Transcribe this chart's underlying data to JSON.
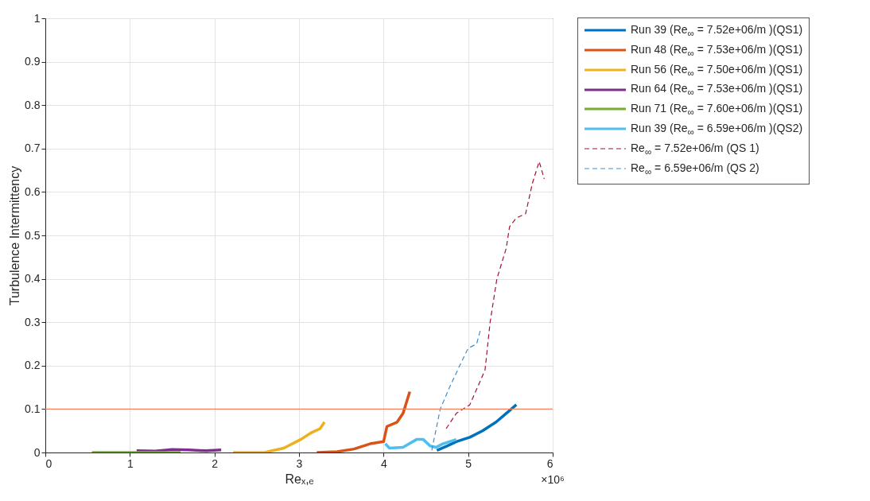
{
  "chart_data": {
    "type": "line",
    "xlabel": "Reₓ,ₑ",
    "ylabel": "Turbulence Intermittency",
    "annotations": [
      "×10⁶"
    ],
    "xlim": [
      0,
      6
    ],
    "ylim": [
      0,
      1
    ],
    "xticks": [
      0,
      1,
      2,
      3,
      4,
      5,
      6
    ],
    "yticks": [
      0,
      0.1,
      0.2,
      0.3,
      0.4,
      0.5,
      0.6,
      0.7,
      0.8,
      0.9,
      1
    ],
    "grid": true,
    "legend": "right",
    "line_style": "solid",
    "marker": "none",
    "ref_lines": [
      {
        "axis": "y",
        "value": 0.1,
        "color": "#f4845f"
      }
    ],
    "series": [
      {
        "name": "Run 39 (Re$_{∞}$ = 7.52e+06/m )(QS1)",
        "color": "#0072bd",
        "x": [
          4.63,
          4.75,
          4.86,
          5.02,
          5.17,
          5.33,
          5.45,
          5.57
        ],
        "values": [
          0.005,
          0.015,
          0.025,
          0.035,
          0.05,
          0.07,
          0.09,
          0.11
        ]
      },
      {
        "name": "Run 48 (Re$_{∞}$ = 7.53e+06/m )(QS1)",
        "color": "#d95319",
        "x": [
          3.21,
          3.45,
          3.65,
          3.84,
          4.0,
          4.04,
          4.16,
          4.23,
          4.31
        ],
        "values": [
          0,
          0.002,
          0.008,
          0.02,
          0.025,
          0.06,
          0.07,
          0.09,
          0.14
        ]
      },
      {
        "name": "Run 56 (Re$_{∞}$ = 7.50e+06/m )(QS1)",
        "color": "#edb120",
        "x": [
          2.22,
          2.59,
          2.82,
          3.02,
          3.14,
          3.25,
          3.3
        ],
        "values": [
          0,
          0,
          0.01,
          0.03,
          0.045,
          0.055,
          0.07
        ]
      },
      {
        "name": "Run 64 (Re$_{∞}$ = 7.53e+06/m )(QS1)",
        "color": "#7e2f8e",
        "x": [
          1.08,
          1.3,
          1.5,
          1.7,
          1.9,
          2.08
        ],
        "values": [
          0.004,
          0.003,
          0.007,
          0.006,
          0.004,
          0.006
        ]
      },
      {
        "name": "Run 71 (Re$_{∞}$ = 7.60e+06/m )(QS1)",
        "color": "#77ac30",
        "x": [
          0.55,
          1.0,
          1.6
        ],
        "values": [
          0,
          0,
          0
        ]
      },
      {
        "name": "Run 39 (Re$_{∞}$ = 6.59e+06/m )(QS2)",
        "color": "#4dbeee",
        "x": [
          4.02,
          4.07,
          4.23,
          4.39,
          4.47,
          4.55,
          4.62,
          4.7,
          4.86
        ],
        "values": [
          0.02,
          0.01,
          0.012,
          0.03,
          0.03,
          0.015,
          0.012,
          0.02,
          0.03
        ]
      },
      {
        "name": "Re$_{∞}$ = 7.52e+06/m (QS 1)",
        "color": "#a2142f",
        "line_style": "dashed",
        "x": [
          4.74,
          4.86,
          5.02,
          5.2,
          5.26,
          5.34,
          5.45,
          5.49,
          5.57,
          5.68,
          5.76,
          5.84,
          5.9
        ],
        "values": [
          0.055,
          0.09,
          0.11,
          0.19,
          0.3,
          0.4,
          0.47,
          0.52,
          0.54,
          0.55,
          0.62,
          0.67,
          0.63
        ]
      },
      {
        "name": "Re$_{∞}$ = 6.59e+06/m (QS 2)",
        "color": "#3a8fd0",
        "line_style": "dashed",
        "x": [
          4.57,
          4.67,
          4.78,
          4.9,
          5.0,
          5.1,
          5.15
        ],
        "values": [
          0.005,
          0.1,
          0.15,
          0.2,
          0.24,
          0.25,
          0.285
        ]
      }
    ]
  }
}
